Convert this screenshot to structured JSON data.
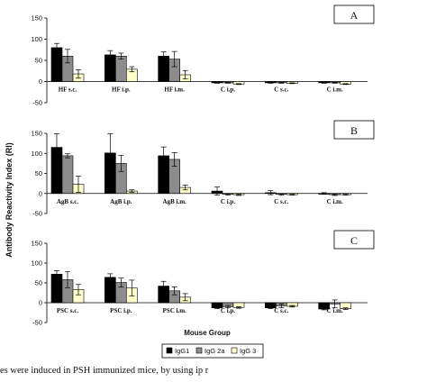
{
  "chart_data": {
    "type": "bar",
    "ylabel": "Antibody Reactivity Index (RI)",
    "xlabel": "Mouse Group",
    "legend": {
      "placement": "bottom",
      "entries": [
        {
          "name": "IgG1",
          "color": "#000000"
        },
        {
          "name": "IgG 2a",
          "color": "#8c8c8c"
        },
        {
          "name": "IgG 3",
          "color": "#ffffcc"
        }
      ]
    },
    "panels": [
      {
        "letter": "A",
        "ylim": [
          -50,
          150
        ],
        "yticks": [
          -50,
          0,
          50,
          100,
          150
        ],
        "categories": [
          "HF s.c.",
          "HF i.p.",
          "HF i.m.",
          "C i.p.",
          "C s.c.",
          "C i.m."
        ],
        "series": [
          {
            "name": "IgG1",
            "values": [
              80,
              63,
              60,
              -3,
              -3,
              -3
            ],
            "errors": [
              10,
              10,
              10,
              1,
              1,
              1
            ]
          },
          {
            "name": "IgG 2a",
            "values": [
              60,
              60,
              53,
              -3,
              -3,
              -3
            ],
            "errors": [
              16,
              7,
              18,
              1,
              1,
              1
            ]
          },
          {
            "name": "IgG 3",
            "values": [
              18,
              29,
              16,
              -6,
              -4,
              -6
            ],
            "errors": [
              10,
              6,
              10,
              1,
              1,
              1
            ]
          }
        ]
      },
      {
        "letter": "B",
        "ylim": [
          -50,
          150
        ],
        "yticks": [
          -50,
          0,
          50,
          100,
          150
        ],
        "categories": [
          "AgB s.c.",
          "AgB i.p.",
          "AgB i.m.",
          "C i.p.",
          "C s.c.",
          "C i.m."
        ],
        "series": [
          {
            "name": "IgG1",
            "values": [
              115,
              101,
              94,
              6,
              2,
              0
            ],
            "errors": [
              34,
              48,
              22,
              10,
              5,
              2
            ]
          },
          {
            "name": "IgG 2a",
            "values": [
              94,
              75,
              85,
              -2,
              -2,
              -3
            ],
            "errors": [
              5,
              20,
              17,
              2,
              2,
              2
            ]
          },
          {
            "name": "IgG 3",
            "values": [
              23,
              6,
              15,
              -3,
              -3,
              -3
            ],
            "errors": [
              20,
              3,
              6,
              2,
              1,
              1
            ]
          }
        ]
      },
      {
        "letter": "C",
        "ylim": [
          -50,
          150
        ],
        "yticks": [
          -50,
          0,
          50,
          100,
          150
        ],
        "categories": [
          "PSC s.c.",
          "PSC i.p.",
          "PSC i.m.",
          "C i.p.",
          "C s.c.",
          "C i.m."
        ],
        "series": [
          {
            "name": "IgG1",
            "values": [
              72,
              64,
              42,
              -13,
              -13,
              -16
            ],
            "errors": [
              9,
              9,
              12,
              2,
              2,
              2
            ]
          },
          {
            "name": "IgG 2a",
            "values": [
              58,
              51,
              30,
              -10,
              -8,
              -3
            ],
            "errors": [
              20,
              11,
              10,
              3,
              5,
              10
            ]
          },
          {
            "name": "IgG 3",
            "values": [
              33,
              37,
              14,
              -12,
              -9,
              -15
            ],
            "errors": [
              13,
              20,
              9,
              2,
              2,
              2
            ]
          }
        ]
      }
    ]
  },
  "caption": "es were induced in PSH immunized mice, by using ip r"
}
